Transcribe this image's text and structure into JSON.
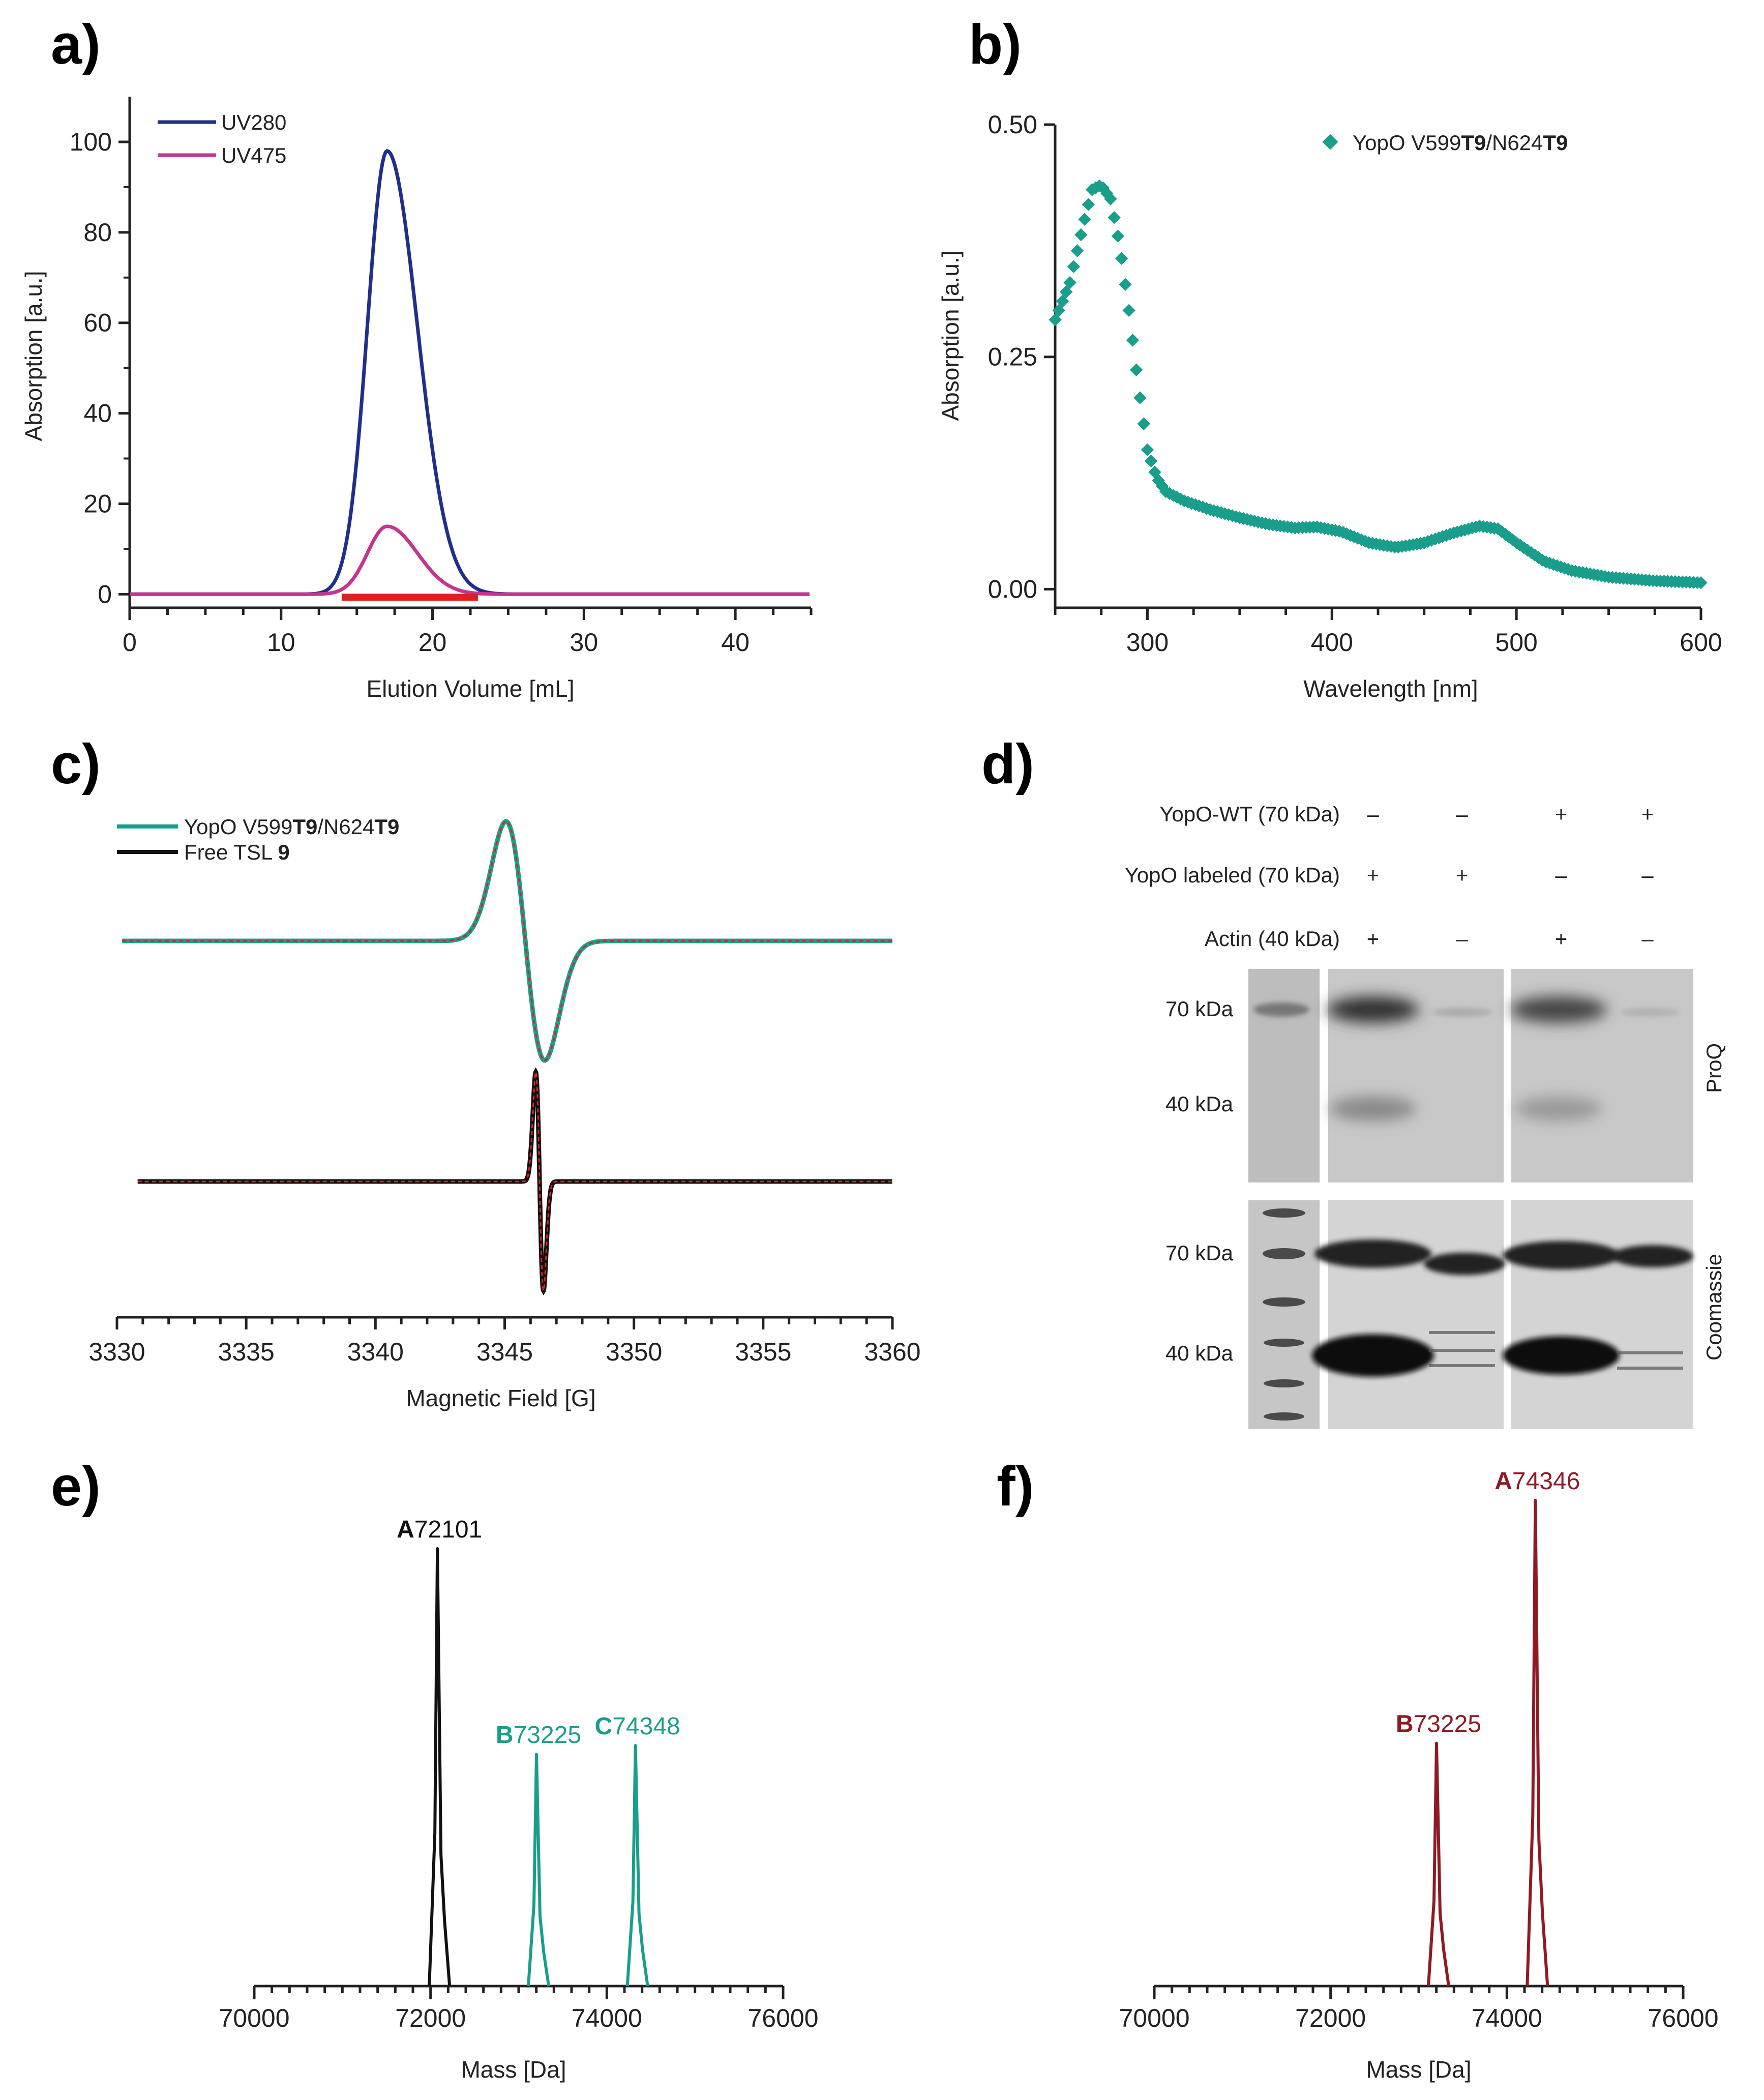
{
  "panel_labels": [
    "a)",
    "b)",
    "c)",
    "d)",
    "e)",
    "f)"
  ],
  "chart_data": [
    {
      "id": "a",
      "type": "line",
      "xlabel": "Elution Volume [mL]",
      "ylabel": "Absorption [a.u.]",
      "xlim": [
        0,
        45
      ],
      "ylim": [
        -3,
        110
      ],
      "xticks": [
        0,
        10,
        20,
        30,
        40
      ],
      "yticks": [
        0,
        20,
        40,
        60,
        80,
        100
      ],
      "series": [
        {
          "name": "UV280",
          "color": "#1f2f8a",
          "peak_x": 17,
          "peak_y": 98,
          "sigma_left": 1.3,
          "sigma_right": 2.0
        },
        {
          "name": "UV475",
          "color": "#c2368f",
          "peak_x": 17,
          "peak_y": 15,
          "sigma_left": 1.3,
          "sigma_right": 2.0
        }
      ],
      "collected_fraction": {
        "x": [
          14,
          23
        ],
        "color": "#e02020"
      }
    },
    {
      "id": "b",
      "type": "scatter",
      "xlabel": "Wavelength [nm]",
      "ylabel": "Absorption [a.u.]",
      "xlim": [
        250,
        600
      ],
      "ylim": [
        -0.02,
        0.5
      ],
      "xticks": [
        300,
        400,
        500,
        600
      ],
      "yticks": [
        0.0,
        0.25,
        0.5
      ],
      "ytick_labels": [
        "0.00",
        "0.25",
        "0.50"
      ],
      "series": [
        {
          "name_plain": "YopO V599",
          "name_bold1": "T9",
          "name_mid": "/N624",
          "name_bold2": "T9",
          "color": "#1a9e8c",
          "x": [
            250,
            258,
            265,
            270,
            275,
            280,
            285,
            290,
            295,
            300,
            305,
            310,
            320,
            335,
            350,
            365,
            380,
            392,
            405,
            420,
            435,
            450,
            465,
            480,
            490,
            500,
            515,
            530,
            550,
            575,
            600
          ],
          "y": [
            0.29,
            0.33,
            0.39,
            0.43,
            0.435,
            0.42,
            0.37,
            0.3,
            0.22,
            0.15,
            0.12,
            0.105,
            0.095,
            0.085,
            0.077,
            0.07,
            0.066,
            0.067,
            0.062,
            0.05,
            0.045,
            0.05,
            0.06,
            0.068,
            0.065,
            0.05,
            0.03,
            0.02,
            0.013,
            0.009,
            0.007
          ]
        }
      ]
    },
    {
      "id": "c",
      "type": "line",
      "xlabel": "Magnetic Field [G]",
      "xlim": [
        3330,
        3360
      ],
      "xticks": [
        3330,
        3335,
        3340,
        3345,
        3350,
        3355,
        3360
      ],
      "series": [
        {
          "name_plain": "YopO V599",
          "name_bold1": "T9",
          "name_mid": "/N624",
          "name_bold2": "T9",
          "color": "#1a9e8c",
          "center": 3345.8,
          "amplitude": 1.0,
          "width": 0.75
        },
        {
          "name_plain": "Free TSL ",
          "name_bold": "9",
          "color": "#111111",
          "center": 3346.35,
          "amplitude": 1.0,
          "width": 0.15
        }
      ],
      "fit_color": "#e02020"
    },
    {
      "id": "e",
      "type": "line",
      "xlabel": "Mass [Da]",
      "xlim": [
        70000,
        76000
      ],
      "xticks": [
        70000,
        72000,
        74000,
        76000
      ],
      "peaks": [
        {
          "letter": "A",
          "value": "72101",
          "x": 72101,
          "height": 1.0,
          "color": "#111111"
        },
        {
          "letter": "B",
          "value": "73225",
          "x": 73225,
          "height": 0.53,
          "color": "#1a9e8c"
        },
        {
          "letter": "C",
          "value": "74348",
          "x": 74348,
          "height": 0.55,
          "color": "#1a9e8c"
        }
      ]
    },
    {
      "id": "f",
      "type": "line",
      "xlabel": "Mass [Da]",
      "xlim": [
        70000,
        76000
      ],
      "xticks": [
        70000,
        72000,
        74000,
        76000
      ],
      "peaks": [
        {
          "letter": "B",
          "value": "73225",
          "x": 73225,
          "height": 0.5,
          "color": "#8e1b24"
        },
        {
          "letter": "A",
          "value": "74346",
          "x": 74346,
          "height": 1.0,
          "color": "#8e1b24"
        }
      ]
    }
  ],
  "gel": {
    "rows": [
      {
        "label": "YopO-WT (70 kDa)",
        "signs": [
          "–",
          "–",
          "+",
          "+"
        ]
      },
      {
        "label": "YopO labeled (70 kDa)",
        "signs": [
          "+",
          "+",
          "–",
          "–"
        ]
      },
      {
        "label": "Actin (40 kDa)",
        "signs": [
          "+",
          "–",
          "+",
          "–"
        ]
      }
    ],
    "proq": {
      "side_label": "ProQ",
      "marker_labels": [
        "70 kDa",
        "40 kDa"
      ]
    },
    "coomassie": {
      "side_label": "Coomassie",
      "marker_labels": [
        "70 kDa",
        "40 kDa"
      ]
    }
  }
}
